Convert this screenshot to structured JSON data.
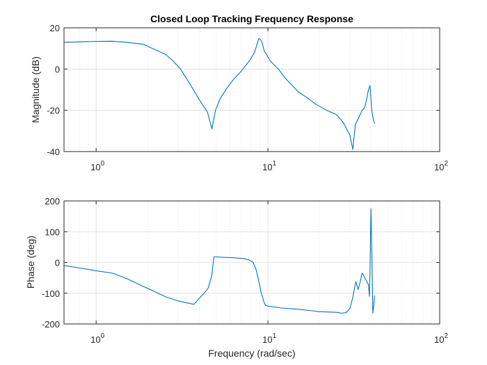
{
  "chart_data": [
    {
      "type": "line",
      "title": "Closed Loop Tracking Frequency Response",
      "xlabel": "",
      "ylabel": "Magnitude (dB)",
      "xscale": "log",
      "xlim": [
        0.65,
        100
      ],
      "ylim": [
        -40,
        20
      ],
      "xticks": [
        {
          "base": "10",
          "exp": "0",
          "value": 1
        },
        {
          "base": "10",
          "exp": "1",
          "value": 10
        },
        {
          "base": "10",
          "exp": "2",
          "value": 100
        }
      ],
      "yticks": [
        {
          "label": "20",
          "value": 20
        },
        {
          "label": "0",
          "value": 0
        },
        {
          "label": "-20",
          "value": -20
        },
        {
          "label": "-40",
          "value": -40
        }
      ],
      "grid": true,
      "minor_grid": true,
      "line_color": "#0072BD",
      "series": [
        {
          "x": [
            0.65,
            0.8,
            1.0,
            1.25,
            1.5,
            1.88,
            2.2,
            2.55,
            2.8,
            3.1,
            3.5,
            4.0,
            4.45,
            4.72,
            4.95,
            5.3,
            5.8,
            6.3,
            7.0,
            7.8,
            8.35,
            8.65,
            8.85,
            9.0,
            9.2,
            9.5,
            10.3,
            11.5,
            12.5,
            13.5,
            15.0,
            17.0,
            19.0,
            22.0,
            25.0,
            27.5,
            30.0,
            31.2,
            32.3,
            34.0,
            35.3,
            36.5,
            37.5,
            38.5,
            39.3,
            40.2,
            41.2,
            42.0
          ],
          "y": [
            13.0,
            13.2,
            13.4,
            13.5,
            13.0,
            12.0,
            9.5,
            7.0,
            4.0,
            0.0,
            -7.0,
            -15.0,
            -21.0,
            -29.0,
            -20.0,
            -14.0,
            -9.0,
            -5.0,
            -1.0,
            4.0,
            8.0,
            12.0,
            14.8,
            14.5,
            13.5,
            9.0,
            4.0,
            0.0,
            -4.0,
            -7.0,
            -11.0,
            -14.0,
            -17.0,
            -20.0,
            -22.0,
            -26.0,
            -32.0,
            -39.0,
            -27.0,
            -23.0,
            -20.0,
            -19.0,
            -15.0,
            -10.0,
            -8.0,
            -20.0,
            -25.0,
            -26.5
          ]
        }
      ]
    },
    {
      "type": "line",
      "title": "",
      "xlabel": "Frequency (rad/sec)",
      "ylabel": "Phase (deg)",
      "xscale": "log",
      "xlim": [
        0.65,
        100
      ],
      "ylim": [
        -200,
        200
      ],
      "xticks": [
        {
          "base": "10",
          "exp": "0",
          "value": 1
        },
        {
          "base": "10",
          "exp": "1",
          "value": 10
        },
        {
          "base": "10",
          "exp": "2",
          "value": 100
        }
      ],
      "yticks": [
        {
          "label": "200",
          "value": 200
        },
        {
          "label": "100",
          "value": 100
        },
        {
          "label": "0",
          "value": 0
        },
        {
          "label": "-100",
          "value": -100
        },
        {
          "label": "-200",
          "value": -200
        }
      ],
      "grid": true,
      "minor_grid": true,
      "line_color": "#0072BD",
      "series": [
        {
          "x": [
            0.65,
            0.8,
            1.0,
            1.25,
            1.5,
            1.88,
            2.2,
            2.55,
            3.0,
            3.7,
            4.3,
            4.5,
            4.72,
            4.85,
            5.0,
            5.5,
            6.5,
            7.3,
            7.8,
            8.2,
            8.5,
            8.8,
            9.1,
            9.5,
            9.7,
            10.0,
            12.0,
            15.0,
            18.0,
            20.0,
            22.0,
            25.0,
            27.0,
            28.5,
            30.0,
            31.0,
            31.8,
            32.5,
            33.5,
            34.5,
            35.3,
            36.0,
            36.8,
            37.5,
            38.5,
            39.0,
            39.3,
            39.8,
            40.3,
            40.8,
            41.3,
            41.8
          ],
          "y": [
            -10,
            -18,
            -27,
            -35,
            -52,
            -78,
            -95,
            -112,
            -125,
            -136,
            -97,
            -82,
            -40,
            18,
            18,
            17,
            15,
            12,
            8,
            0,
            -20,
            -55,
            -95,
            -130,
            -140,
            -142,
            -148,
            -152,
            -157,
            -160,
            -161,
            -162,
            -165,
            -163,
            -150,
            -120,
            -90,
            -62,
            -88,
            -62,
            -35,
            -40,
            -53,
            -60,
            -72,
            -110,
            -20,
            175,
            25,
            -165,
            -140,
            -108
          ]
        }
      ]
    }
  ]
}
